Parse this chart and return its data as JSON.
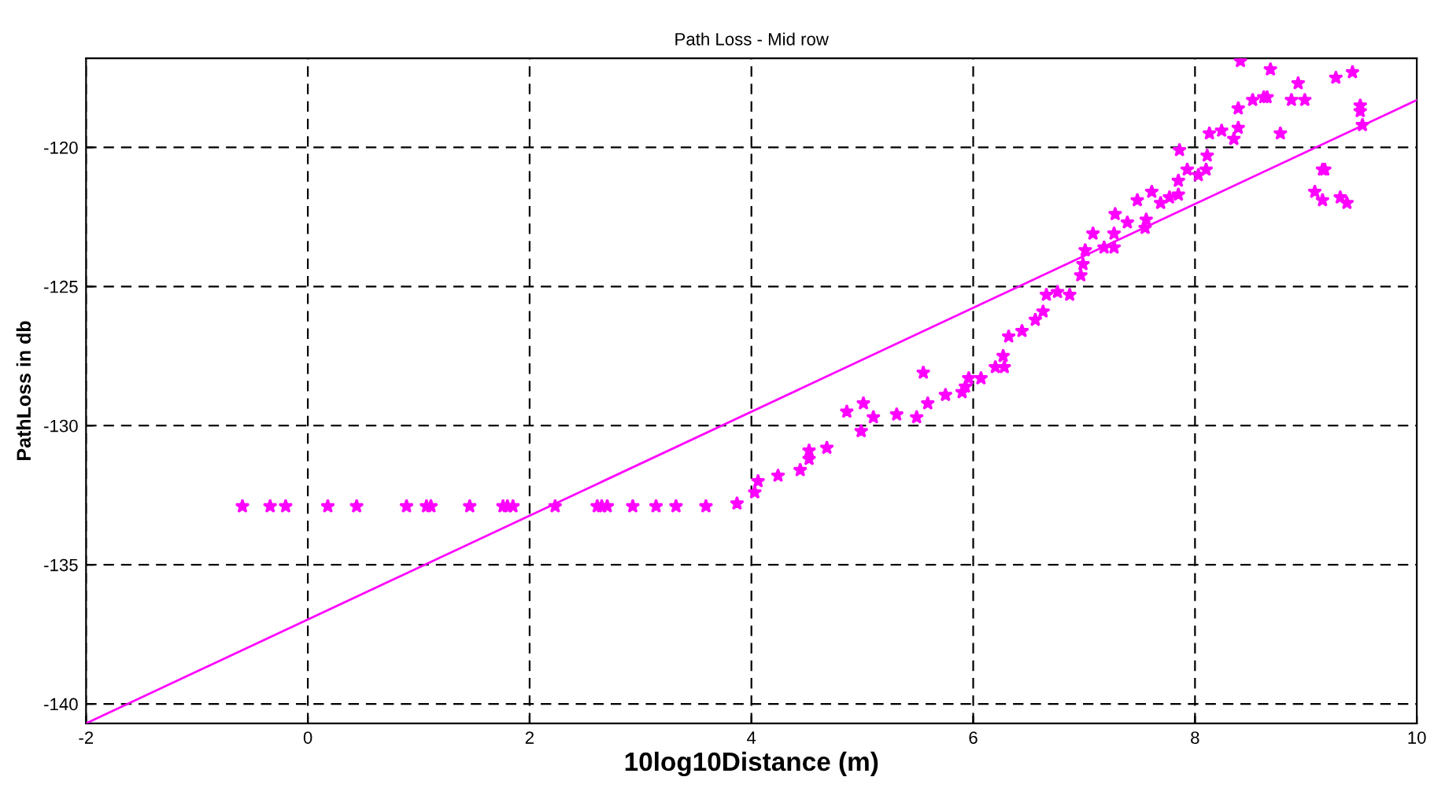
{
  "chart_data": {
    "type": "scatter",
    "title": "Path Loss - Mid row",
    "xlabel": "10log10Distance (m)",
    "ylabel": "PathLoss in db",
    "xlim": [
      -2,
      10
    ],
    "ylim": [
      -140.7,
      -116.8
    ],
    "xticks": [
      -2,
      0,
      2,
      4,
      6,
      8,
      10
    ],
    "yticks": [
      -140,
      -135,
      -130,
      -125,
      -120
    ],
    "grid": true,
    "legend": false,
    "series": [
      {
        "marker": "star",
        "color": "#ff00ff",
        "x": [
          -0.59,
          -0.34,
          -0.2,
          0.18,
          0.44,
          0.89,
          1.07,
          1.11,
          1.46,
          1.76,
          1.8,
          1.85,
          2.23,
          2.61,
          2.65,
          2.7,
          2.93,
          3.14,
          3.32,
          3.59,
          3.87,
          4.03,
          4.06,
          4.24,
          4.44,
          4.52,
          4.52,
          4.68,
          4.99,
          4.86,
          5.01,
          5.1,
          5.31,
          5.49,
          5.55,
          5.59,
          5.75,
          5.9,
          5.93,
          5.96,
          6.07,
          6.2,
          6.28,
          6.27,
          6.32,
          6.44,
          6.56,
          6.63,
          6.66,
          6.76,
          6.87,
          6.97,
          6.99,
          7.01,
          7.08,
          7.18,
          7.27,
          7.27,
          7.28,
          7.39,
          7.55,
          7.56,
          7.48,
          7.61,
          7.69,
          7.77,
          7.85,
          7.85,
          7.86,
          7.93,
          8.03,
          8.1,
          8.11,
          8.13,
          8.24,
          8.35,
          8.39,
          8.39,
          8.52,
          8.41,
          8.62,
          8.65,
          8.68,
          8.77,
          8.87,
          8.99,
          8.93,
          9.15,
          9.17,
          9.08,
          9.15,
          9.31,
          9.37,
          9.27,
          9.42,
          9.49,
          9.49,
          9.51
        ],
        "values": [
          -132.9,
          -132.9,
          -132.9,
          -132.9,
          -132.9,
          -132.9,
          -132.9,
          -132.9,
          -132.9,
          -132.9,
          -132.9,
          -132.9,
          -132.9,
          -132.9,
          -132.9,
          -132.9,
          -132.9,
          -132.9,
          -132.9,
          -132.9,
          -132.8,
          -132.4,
          -132.0,
          -131.8,
          -131.6,
          -131.2,
          -130.9,
          -130.8,
          -130.2,
          -129.5,
          -129.2,
          -129.7,
          -129.6,
          -129.7,
          -128.1,
          -129.2,
          -128.9,
          -128.8,
          -128.6,
          -128.3,
          -128.3,
          -127.9,
          -127.9,
          -127.5,
          -126.8,
          -126.6,
          -126.2,
          -125.9,
          -125.3,
          -125.2,
          -125.3,
          -124.6,
          -124.2,
          -123.7,
          -123.1,
          -123.6,
          -123.6,
          -123.1,
          -122.4,
          -122.7,
          -122.9,
          -122.6,
          -121.9,
          -121.6,
          -122.0,
          -121.8,
          -121.7,
          -121.2,
          -120.1,
          -120.8,
          -121.0,
          -120.8,
          -120.3,
          -119.5,
          -119.4,
          -119.7,
          -119.3,
          -118.6,
          -118.3,
          -116.9,
          -118.2,
          -118.2,
          -117.2,
          -119.5,
          -118.3,
          -118.3,
          -117.7,
          -120.8,
          -120.8,
          -121.6,
          -121.9,
          -121.8,
          -122.0,
          -117.5,
          -117.3,
          -118.5,
          -118.7,
          -119.2
        ]
      },
      {
        "type": "line",
        "marker": "none",
        "line_style": "solid",
        "color": "#ff00ff",
        "x": [
          -2,
          10
        ],
        "values": [
          -140.7,
          -118.3
        ]
      }
    ]
  }
}
